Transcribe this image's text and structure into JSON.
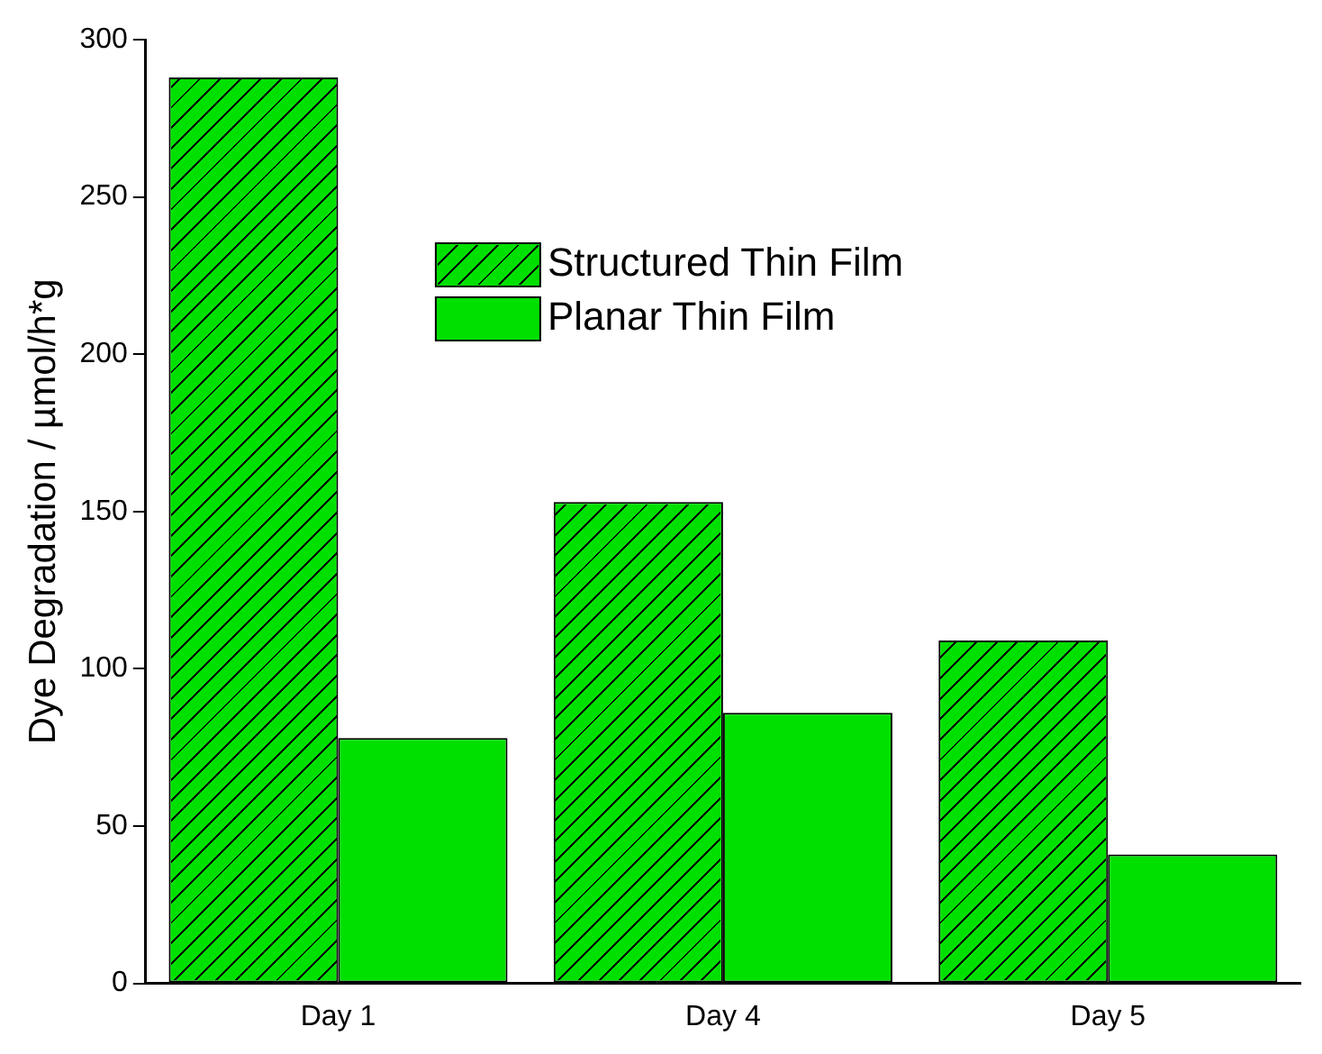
{
  "chart_data": {
    "type": "bar",
    "ylabel": "Dye Degradation / µmol/h*g",
    "categories": [
      "Day 1",
      "Day 4",
      "Day 5"
    ],
    "series": [
      {
        "name": "Structured Thin Film",
        "color": "#00e000",
        "values": [
          288,
          153,
          109
        ]
      },
      {
        "name": "Planar Thin Film",
        "color": "#00e000",
        "values": [
          78,
          86,
          41
        ]
      }
    ],
    "ylim": [
      0,
      300
    ],
    "yticks": [
      0,
      50,
      100,
      150,
      200,
      250,
      300
    ],
    "grid": false,
    "legend": "top right"
  }
}
